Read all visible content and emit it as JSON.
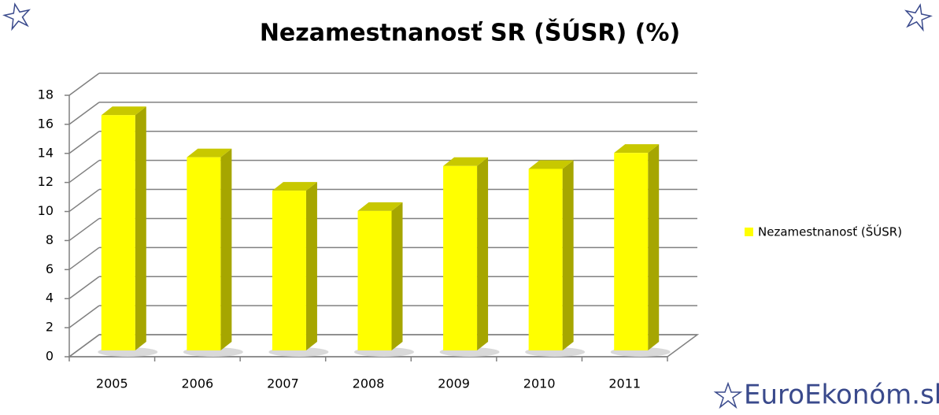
{
  "chart_data": {
    "type": "bar3d",
    "title": "Nezamestnanosť SR (ŠÚSR) (%)",
    "categories": [
      "2005",
      "2006",
      "2007",
      "2008",
      "2009",
      "2010",
      "2011"
    ],
    "series": [
      {
        "name": "Nezamestnanosť  (ŠÚSR)",
        "color": "#ffff00",
        "values": [
          16.2,
          13.3,
          11.0,
          9.6,
          12.7,
          12.5,
          13.6
        ]
      }
    ],
    "ylim": [
      0,
      18
    ],
    "yticks": [
      0,
      2,
      4,
      6,
      8,
      10,
      12,
      14,
      16,
      18
    ],
    "grid": true,
    "legend": "right"
  },
  "branding": "EuroEkonóm.sk"
}
